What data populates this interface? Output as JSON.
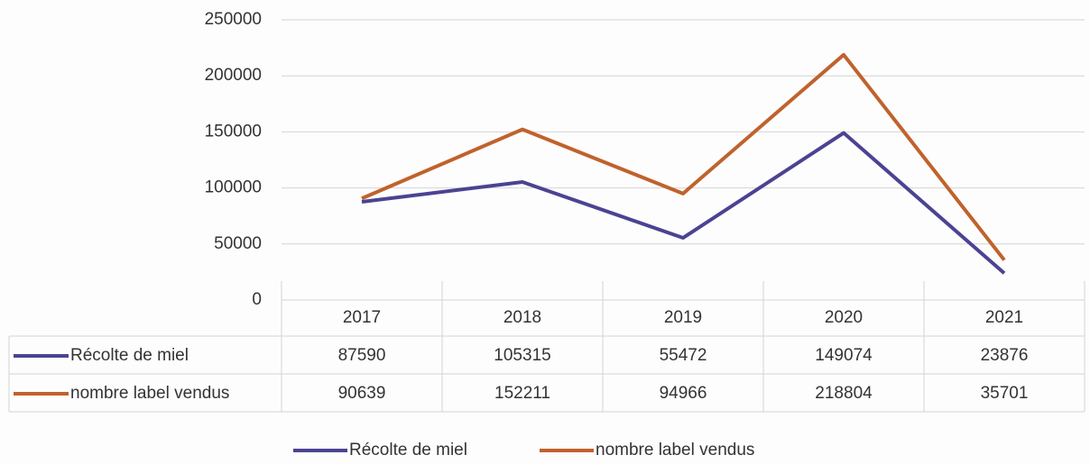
{
  "chart_data": {
    "type": "line",
    "categories": [
      "2017",
      "2018",
      "2019",
      "2020",
      "2021"
    ],
    "series": [
      {
        "name": "Récolte de miel",
        "color": "#4b4392",
        "values": [
          87590,
          105315,
          55472,
          149074,
          23876
        ]
      },
      {
        "name": "nombre label vendus",
        "color": "#c0622d",
        "values": [
          90639,
          152211,
          94966,
          218804,
          35701
        ]
      }
    ],
    "ylim": [
      0,
      250000
    ],
    "yticks": [
      0,
      50000,
      100000,
      150000,
      200000,
      250000
    ],
    "grid": true
  }
}
